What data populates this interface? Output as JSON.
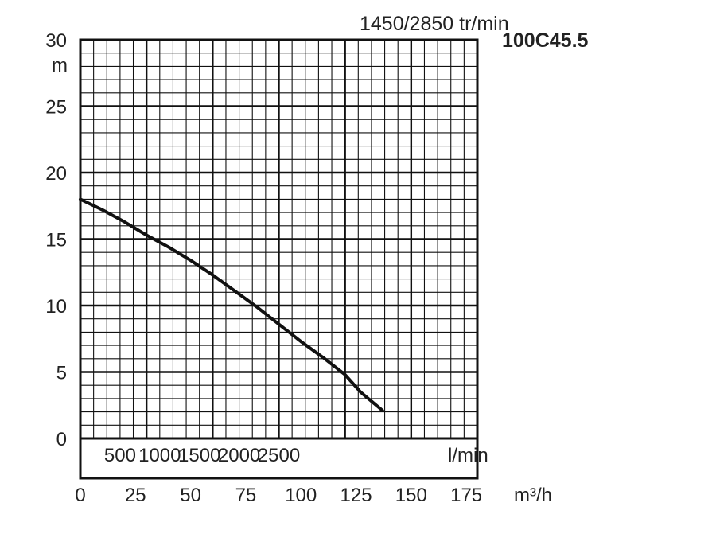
{
  "chart_data": {
    "type": "line",
    "title": "1450/2850 tr/min",
    "model": "100C45.5",
    "ylabel": "m",
    "ylim": [
      0,
      30
    ],
    "yticks": [
      "0",
      "5",
      "10",
      "15",
      "20",
      "25",
      "30"
    ],
    "x_flow_lmin": {
      "label": "l/min",
      "ticks": [
        "500",
        "1000",
        "1500",
        "2000",
        "2500"
      ]
    },
    "x_flow_m3h": {
      "label": "m³/h",
      "xlim": [
        0,
        180
      ],
      "ticks": [
        "0",
        "25",
        "50",
        "75",
        "100",
        "125",
        "150",
        "175"
      ]
    },
    "grid": true,
    "series": [
      {
        "x": [
          0,
          10,
          20,
          30,
          40,
          50,
          60,
          70,
          80,
          90,
          100,
          110,
          120,
          127,
          137
        ],
        "y": [
          18.0,
          17.2,
          16.3,
          15.3,
          14.4,
          13.4,
          12.3,
          11.1,
          9.9,
          8.6,
          7.3,
          6.1,
          4.8,
          3.5,
          2.1
        ]
      }
    ],
    "line_color": "#111111",
    "grid_color": "#111111"
  }
}
